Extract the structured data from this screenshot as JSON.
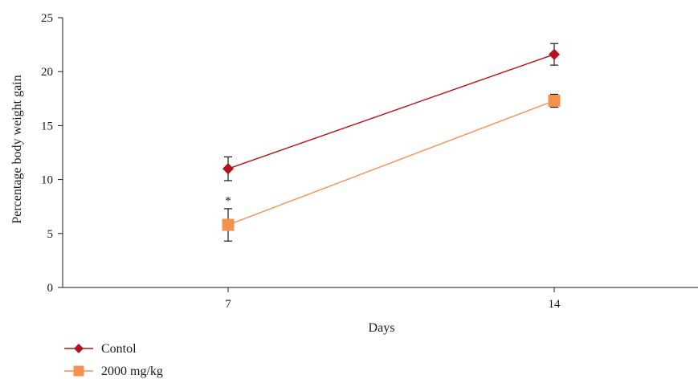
{
  "chart_data": {
    "type": "line",
    "title": "",
    "xlabel": "Days",
    "ylabel": "Percentage body weight gain",
    "categories": [
      "7",
      "14"
    ],
    "ylim": [
      0,
      25
    ],
    "yticks": [
      "0",
      "5",
      "10",
      "15",
      "20",
      "25"
    ],
    "grid": false,
    "legend_position": "bottom-left",
    "series": [
      {
        "name": "Contol",
        "values": [
          11.0,
          21.6
        ],
        "errors": [
          1.1,
          1.0
        ],
        "color": "#b5121b",
        "marker": "diamond"
      },
      {
        "name": "2000 mg/kg",
        "values": [
          5.8,
          17.3
        ],
        "errors": [
          1.5,
          0.6
        ],
        "color": "#f4914e",
        "marker": "square"
      }
    ],
    "annotations": [
      {
        "text": "*",
        "category": "7",
        "y": 8.3
      }
    ]
  }
}
